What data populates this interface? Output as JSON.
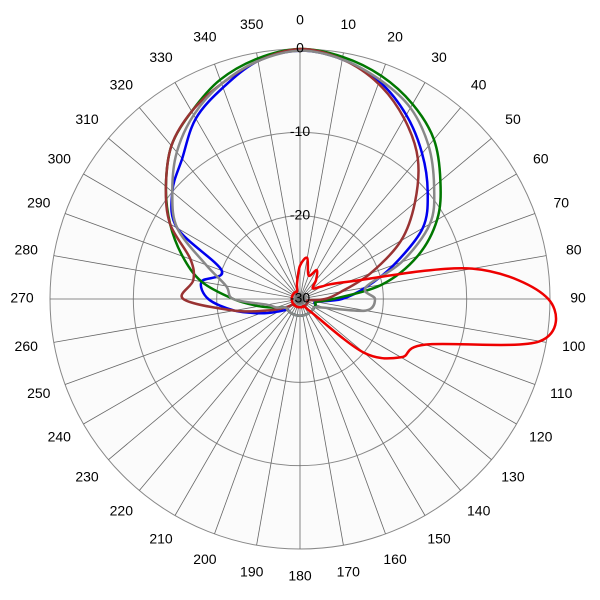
{
  "chart_data": {
    "type": "polar",
    "theta": [
      0,
      10,
      20,
      30,
      40,
      50,
      60,
      70,
      80,
      90,
      100,
      110,
      120,
      130,
      140,
      150,
      160,
      170,
      180,
      190,
      200,
      210,
      220,
      230,
      240,
      250,
      260,
      270,
      280,
      290,
      300,
      310,
      320,
      330,
      340,
      350
    ],
    "thetaticks": [
      0,
      10,
      20,
      30,
      40,
      50,
      60,
      70,
      80,
      90,
      100,
      110,
      120,
      130,
      140,
      150,
      160,
      170,
      180,
      190,
      200,
      210,
      220,
      230,
      240,
      250,
      260,
      270,
      280,
      290,
      300,
      310,
      320,
      330,
      340,
      350
    ],
    "rlim": [
      -30,
      0
    ],
    "rticks": [
      0,
      -10,
      -20,
      -30
    ],
    "grid": true,
    "series": [
      {
        "color": "#0000ee",
        "values": [
          -0.2,
          -0.8,
          -2.2,
          -4.5,
          -7.2,
          -10,
          -13,
          -18,
          -22,
          -25,
          -28,
          -28,
          -28,
          -28,
          -28,
          -28,
          -28,
          -28,
          -28,
          -28,
          -28,
          -28,
          -28,
          -28,
          -27,
          -25,
          -22,
          -19,
          -18,
          -20,
          -13,
          -10,
          -8,
          -5,
          -3,
          -1
        ]
      },
      {
        "color": "#007700",
        "values": [
          0,
          -0.5,
          -1.5,
          -3,
          -5,
          -8,
          -11,
          -15,
          -20,
          -26,
          -28,
          -28,
          -28,
          -28,
          -28,
          -28,
          -28,
          -28,
          -28,
          -28,
          -28,
          -28,
          -28,
          -28,
          -28,
          -27,
          -25,
          -22,
          -18,
          -15,
          -12,
          -9,
          -6,
          -4,
          -2,
          -0.7
        ]
      },
      {
        "color": "#993333",
        "values": [
          0,
          -0.8,
          -2.5,
          -5,
          -8,
          -12,
          -16,
          -21,
          -25,
          -27,
          -29,
          -29,
          -29,
          -29,
          -29,
          -29,
          -29,
          -29,
          -29,
          -29,
          -29,
          -29,
          -29,
          -29,
          -28,
          -26,
          -22,
          -16,
          -17,
          -16,
          -12,
          -9,
          -6,
          -4,
          -2.5,
          -1
        ]
      },
      {
        "color": "#888888",
        "values": [
          -0.2,
          -0.8,
          -2,
          -3.5,
          -6,
          -9,
          -12,
          -17,
          -22,
          -21,
          -22,
          -27,
          -28,
          -28,
          -28,
          -28,
          -28,
          -28,
          -28,
          -28,
          -28,
          -28,
          -28,
          -28,
          -28,
          -27,
          -26,
          -22,
          -21,
          -18,
          -13,
          -10,
          -7,
          -4.5,
          -2.5,
          -1
        ]
      },
      {
        "color": "#ee0000",
        "values": [
          -26,
          -25,
          -27,
          -26,
          -27,
          -28,
          -27,
          -24,
          -9,
          -0.2,
          -0.8,
          -14,
          -16,
          -20,
          -28,
          -29,
          -29,
          -29,
          -29,
          -29,
          -29,
          -29,
          -29,
          -29,
          -29,
          -29,
          -29,
          -29,
          -29,
          -29,
          -29,
          -29,
          -29,
          -29,
          -29,
          -28
        ]
      }
    ]
  }
}
